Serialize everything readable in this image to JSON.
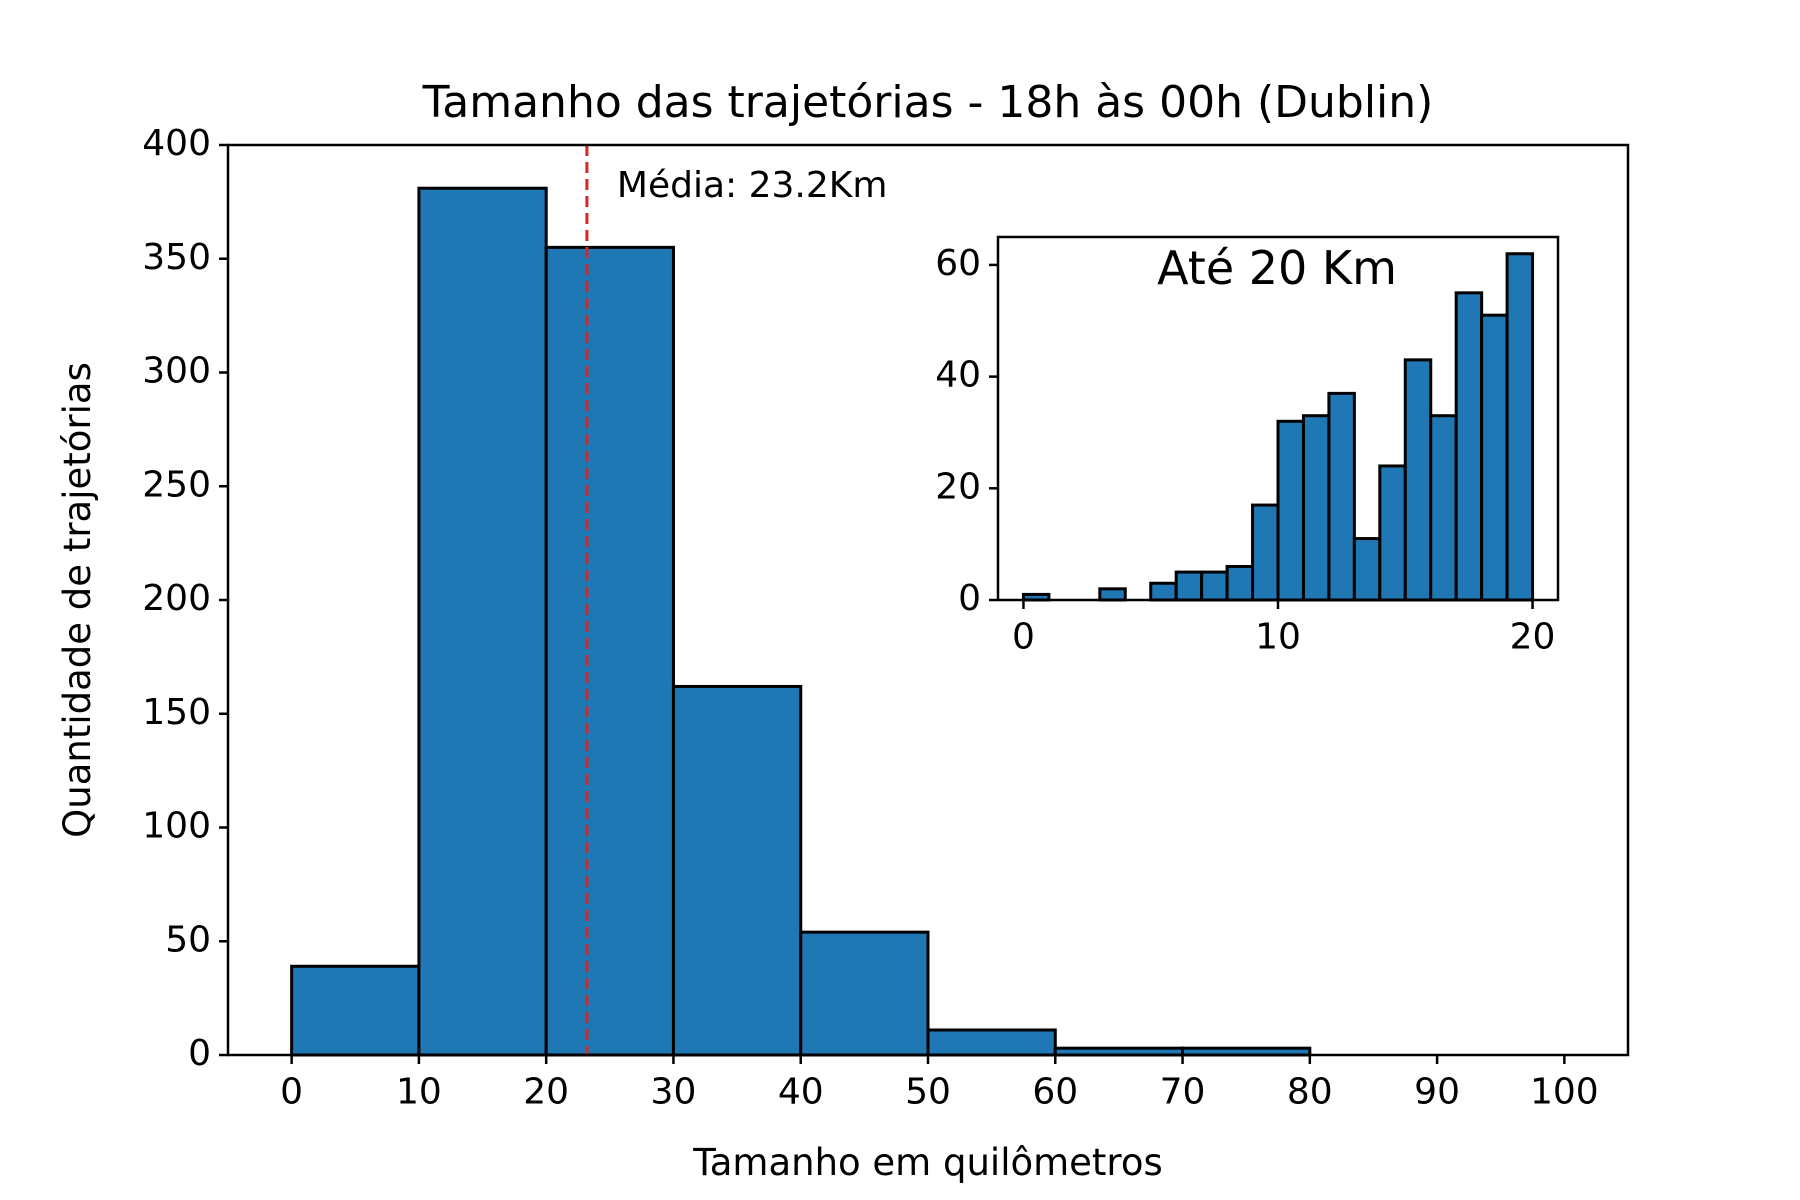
{
  "chart_data": [
    {
      "type": "bar",
      "title": "Tamanho das trajetórias - 18h às 00h (Dublin)",
      "xlabel": "Tamanho em quilômetros",
      "ylabel": "Quantidade de trajetórias",
      "bin_edges": [
        0,
        10,
        20,
        30,
        40,
        50,
        60,
        70,
        80,
        90,
        100
      ],
      "values": [
        39,
        381,
        355,
        162,
        54,
        11,
        3,
        3,
        0,
        0
      ],
      "xlim": [
        -5,
        105
      ],
      "ylim": [
        0,
        400
      ],
      "xticks": [
        0,
        10,
        20,
        30,
        40,
        50,
        60,
        70,
        80,
        90,
        100
      ],
      "yticks": [
        0,
        50,
        100,
        150,
        200,
        250,
        300,
        350,
        400
      ],
      "bar_color": "#1f77b4",
      "mean_line": {
        "x": 23.2,
        "color": "#d62728",
        "style": "dashed",
        "label": "Média: 23.2Km"
      }
    },
    {
      "type": "bar",
      "title": "Até 20 Km",
      "bin_edges": [
        0,
        1,
        2,
        3,
        4,
        5,
        6,
        7,
        8,
        9,
        10,
        11,
        12,
        13,
        14,
        15,
        16,
        17,
        18,
        19,
        20
      ],
      "values": [
        1,
        0,
        0,
        2,
        0,
        3,
        5,
        5,
        6,
        17,
        32,
        33,
        37,
        11,
        24,
        43,
        33,
        55,
        51,
        62
      ],
      "xlim": [
        -1,
        21
      ],
      "ylim": [
        0,
        65
      ],
      "xticks": [
        0,
        10,
        20
      ],
      "yticks": [
        0,
        20,
        40,
        60
      ],
      "bar_color": "#1f77b4"
    }
  ]
}
